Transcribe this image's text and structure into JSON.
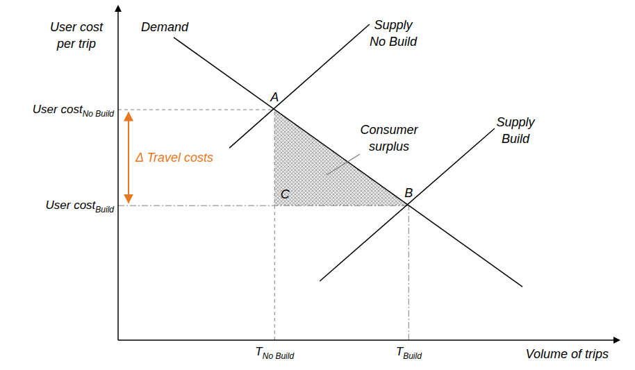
{
  "chart_data": {
    "type": "line",
    "xlabel": "Volume of trips",
    "ylabel": "User cost\nper trip",
    "xlim": [
      0,
      100
    ],
    "ylim": [
      0,
      100
    ],
    "xticks": [
      {
        "value": 31.5,
        "label": "T",
        "subscript": "No Build"
      },
      {
        "value": 58.5,
        "label": "T",
        "subscript": "Build"
      }
    ],
    "yticks": [
      {
        "value": 40.8,
        "label": "User cost",
        "subscript": "Build"
      },
      {
        "value": 69.9,
        "label": "User cost",
        "subscript": "No Build"
      }
    ],
    "series": [
      {
        "name": "Demand",
        "color": "#000000",
        "x": [
          11.2,
          81.4
        ],
        "values": [
          91.8,
          16.2
        ]
      },
      {
        "name": "Supply\nNo Build",
        "color": "#000000",
        "x": [
          22.4,
          50.6
        ],
        "values": [
          58.3,
          95.8
        ]
      },
      {
        "name": "Supply\nBuild",
        "color": "#000000",
        "x": [
          40.6,
          75.8
        ],
        "values": [
          17.9,
          64.2
        ]
      }
    ],
    "points": [
      {
        "label": "A",
        "x": 31.5,
        "y": 69.9
      },
      {
        "label": "B",
        "x": 58.5,
        "y": 40.8
      },
      {
        "label": "C",
        "x": 31.5,
        "y": 40.8
      }
    ],
    "shaded_area": {
      "label": "Consumer\nsurplus",
      "color": "#8c8c8c",
      "x": [
        31.5,
        58.5
      ],
      "upper": [
        69.9,
        40.8
      ],
      "lower": [
        40.8,
        40.8
      ]
    },
    "annotations": [
      {
        "text": "Δ Travel costs",
        "color": "#e87722"
      }
    ],
    "grid": false
  }
}
